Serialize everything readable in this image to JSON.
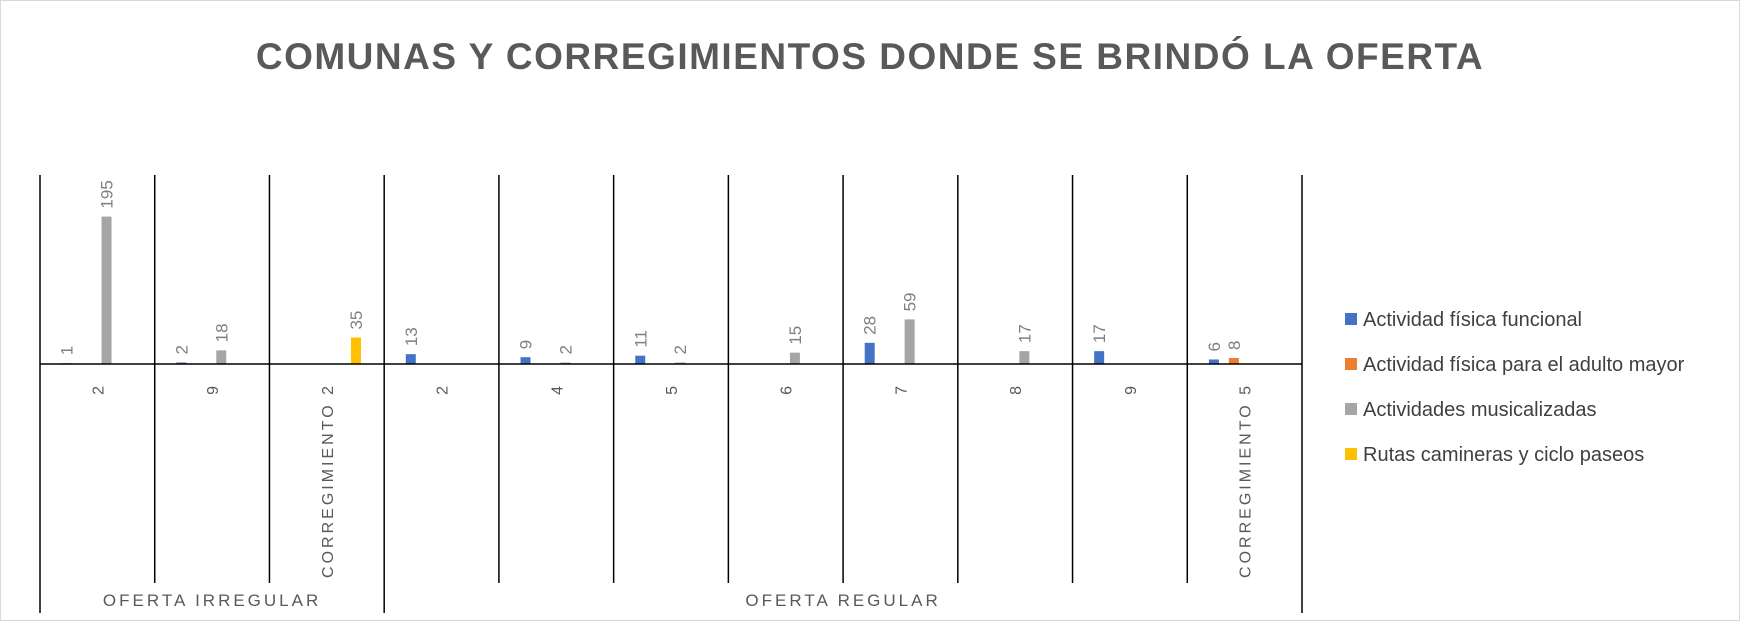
{
  "chart_data": {
    "type": "bar",
    "title": "COMUNAS Y CORREGIMIENTOS DONDE SE BRINDÓ LA OFERTA",
    "groups": [
      {
        "label": "OFERTA  IRREGULAR",
        "categories": [
          "2",
          "9",
          "CORREGIMIENTO 2"
        ]
      },
      {
        "label": "OFERTA REGULAR",
        "categories": [
          "2",
          "4",
          "5",
          "6",
          "7",
          "8",
          "9",
          "CORREGIMIENTO 5"
        ]
      }
    ],
    "series": [
      {
        "name": "Actividad física funcional",
        "color": "#4472c4",
        "values": [
          1,
          2,
          null,
          13,
          9,
          11,
          null,
          28,
          null,
          17,
          6
        ]
      },
      {
        "name": "Actividad física para el adulto mayor",
        "color": "#ed7d31",
        "values": [
          null,
          null,
          null,
          null,
          null,
          null,
          null,
          null,
          null,
          null,
          8
        ]
      },
      {
        "name": "Actividades musicalizadas",
        "color": "#a5a5a5",
        "values": [
          195,
          18,
          null,
          null,
          2,
          2,
          15,
          59,
          17,
          null,
          null
        ]
      },
      {
        "name": "Rutas camineras y ciclo paseos",
        "color": "#ffc000",
        "values": [
          null,
          null,
          35,
          null,
          null,
          null,
          null,
          null,
          null,
          null,
          null
        ]
      }
    ],
    "ylim": [
      0,
      250
    ],
    "legend": "right"
  }
}
